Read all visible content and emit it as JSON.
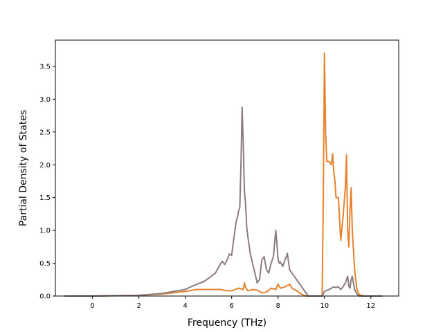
{
  "chart_data": {
    "type": "line",
    "title": "",
    "xlabel": "Frequency (THz)",
    "ylabel": "Partial Density of States",
    "xlim": [
      -1.6,
      13.2
    ],
    "ylim": [
      0.0,
      3.9
    ],
    "xticks": [
      0,
      2,
      4,
      6,
      8,
      10,
      12
    ],
    "yticks": [
      0.0,
      0.5,
      1.0,
      1.5,
      2.0,
      2.5,
      3.0,
      3.5
    ],
    "xtick_labels": [
      "0",
      "2",
      "4",
      "6",
      "8",
      "10",
      "12"
    ],
    "ytick_labels": [
      "0.0",
      "0.5",
      "1.0",
      "1.5",
      "2.0",
      "2.5",
      "3.0",
      "3.5"
    ],
    "grid": false,
    "legend": "none",
    "series": [
      {
        "color": "#e8812b",
        "x": [
          -1.2,
          0.0,
          1.0,
          2.0,
          3.0,
          4.0,
          4.5,
          5.0,
          5.5,
          5.8,
          6.0,
          6.3,
          6.5,
          6.55,
          6.6,
          6.7,
          6.9,
          7.1,
          7.3,
          7.5,
          7.7,
          7.9,
          8.0,
          8.1,
          8.3,
          8.5,
          8.6,
          8.8,
          9.0,
          9.2,
          9.5,
          9.9,
          9.95,
          10.0,
          10.05,
          10.1,
          10.2,
          10.3,
          10.35,
          10.4,
          10.45,
          10.5,
          10.6,
          10.7,
          10.8,
          10.9,
          10.95,
          11.0,
          11.05,
          11.1,
          11.15,
          11.2,
          11.3,
          11.4,
          11.5,
          11.7,
          12.0,
          12.5
        ],
        "y": [
          0.0,
          0.0,
          0.005,
          0.01,
          0.03,
          0.07,
          0.1,
          0.1,
          0.1,
          0.08,
          0.08,
          0.12,
          0.1,
          0.2,
          0.13,
          0.08,
          0.1,
          0.09,
          0.05,
          0.06,
          0.12,
          0.1,
          0.18,
          0.12,
          0.14,
          0.18,
          0.12,
          0.08,
          0.03,
          0.0,
          0.0,
          0.0,
          1.5,
          3.7,
          2.5,
          2.05,
          2.05,
          2.0,
          2.17,
          1.9,
          1.75,
          1.5,
          1.5,
          0.85,
          1.2,
          1.65,
          2.15,
          1.0,
          0.75,
          1.3,
          1.65,
          1.0,
          0.4,
          0.1,
          0.02,
          0.0,
          0.0,
          0.0
        ]
      },
      {
        "color": "#8c7b7d",
        "x": [
          -1.2,
          0.0,
          1.0,
          2.0,
          3.0,
          3.5,
          4.0,
          4.3,
          4.5,
          4.8,
          5.0,
          5.3,
          5.5,
          5.6,
          5.7,
          5.8,
          5.9,
          6.0,
          6.1,
          6.2,
          6.25,
          6.3,
          6.35,
          6.4,
          6.45,
          6.5,
          6.55,
          6.6,
          6.65,
          6.7,
          6.8,
          6.9,
          7.0,
          7.1,
          7.2,
          7.3,
          7.4,
          7.5,
          7.6,
          7.7,
          7.8,
          7.9,
          7.95,
          8.0,
          8.05,
          8.1,
          8.2,
          8.3,
          8.4,
          8.5,
          8.6,
          8.8,
          9.0,
          9.2,
          9.3,
          9.5,
          9.9,
          10.0,
          10.2,
          10.4,
          10.5,
          10.6,
          10.7,
          10.8,
          10.9,
          11.0,
          11.05,
          11.1,
          11.15,
          11.2,
          11.25,
          11.3,
          11.4,
          11.5,
          12.0,
          12.5
        ],
        "y": [
          0.0,
          0.0,
          0.005,
          0.01,
          0.04,
          0.07,
          0.1,
          0.15,
          0.18,
          0.22,
          0.27,
          0.35,
          0.48,
          0.53,
          0.48,
          0.55,
          0.64,
          0.62,
          0.9,
          1.15,
          1.2,
          1.3,
          1.35,
          2.0,
          2.88,
          2.3,
          1.6,
          1.4,
          1.05,
          0.9,
          0.65,
          0.5,
          0.35,
          0.2,
          0.25,
          0.55,
          0.6,
          0.4,
          0.35,
          0.5,
          0.6,
          1.0,
          0.8,
          0.55,
          0.5,
          0.52,
          0.45,
          0.55,
          0.65,
          0.4,
          0.35,
          0.25,
          0.15,
          0.05,
          0.0,
          0.0,
          0.0,
          0.07,
          0.1,
          0.14,
          0.13,
          0.14,
          0.1,
          0.14,
          0.2,
          0.3,
          0.15,
          0.12,
          0.25,
          0.3,
          0.2,
          0.1,
          0.03,
          0.0,
          0.0,
          0.0
        ]
      }
    ]
  }
}
